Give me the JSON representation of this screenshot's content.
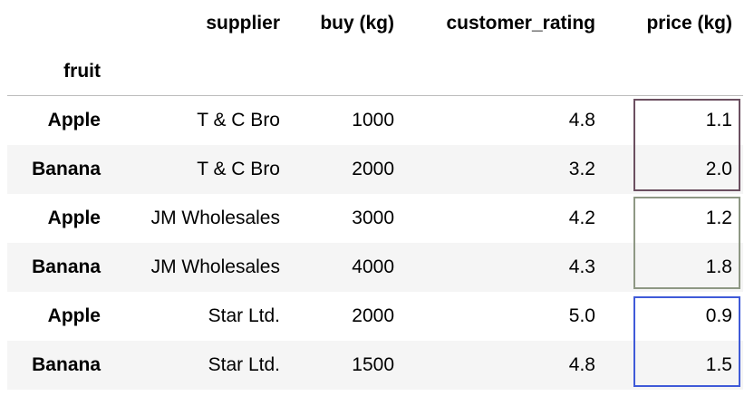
{
  "table": {
    "columns": [
      "supplier",
      "buy (kg)",
      "customer_rating",
      "price (kg)"
    ],
    "index_name": "fruit",
    "rows": [
      {
        "index": "Apple",
        "cells": [
          "T & C Bro",
          "1000",
          "4.8",
          "1.1"
        ]
      },
      {
        "index": "Banana",
        "cells": [
          "T & C Bro",
          "2000",
          "3.2",
          "2.0"
        ]
      },
      {
        "index": "Apple",
        "cells": [
          "JM Wholesales",
          "3000",
          "4.2",
          "1.2"
        ]
      },
      {
        "index": "Banana",
        "cells": [
          "JM Wholesales",
          "4000",
          "4.3",
          "1.8"
        ]
      },
      {
        "index": "Apple",
        "cells": [
          "Star Ltd.",
          "2000",
          "5.0",
          "0.9"
        ]
      },
      {
        "index": "Banana",
        "cells": [
          "Star Ltd.",
          "1500",
          "4.8",
          "1.5"
        ]
      }
    ]
  },
  "highlights": [
    {
      "group": "T & C Bro",
      "color": "#6b4f60"
    },
    {
      "group": "JM Wholesales",
      "color": "#8e9884"
    },
    {
      "group": "Star Ltd.",
      "color": "#3f5ad8"
    }
  ]
}
